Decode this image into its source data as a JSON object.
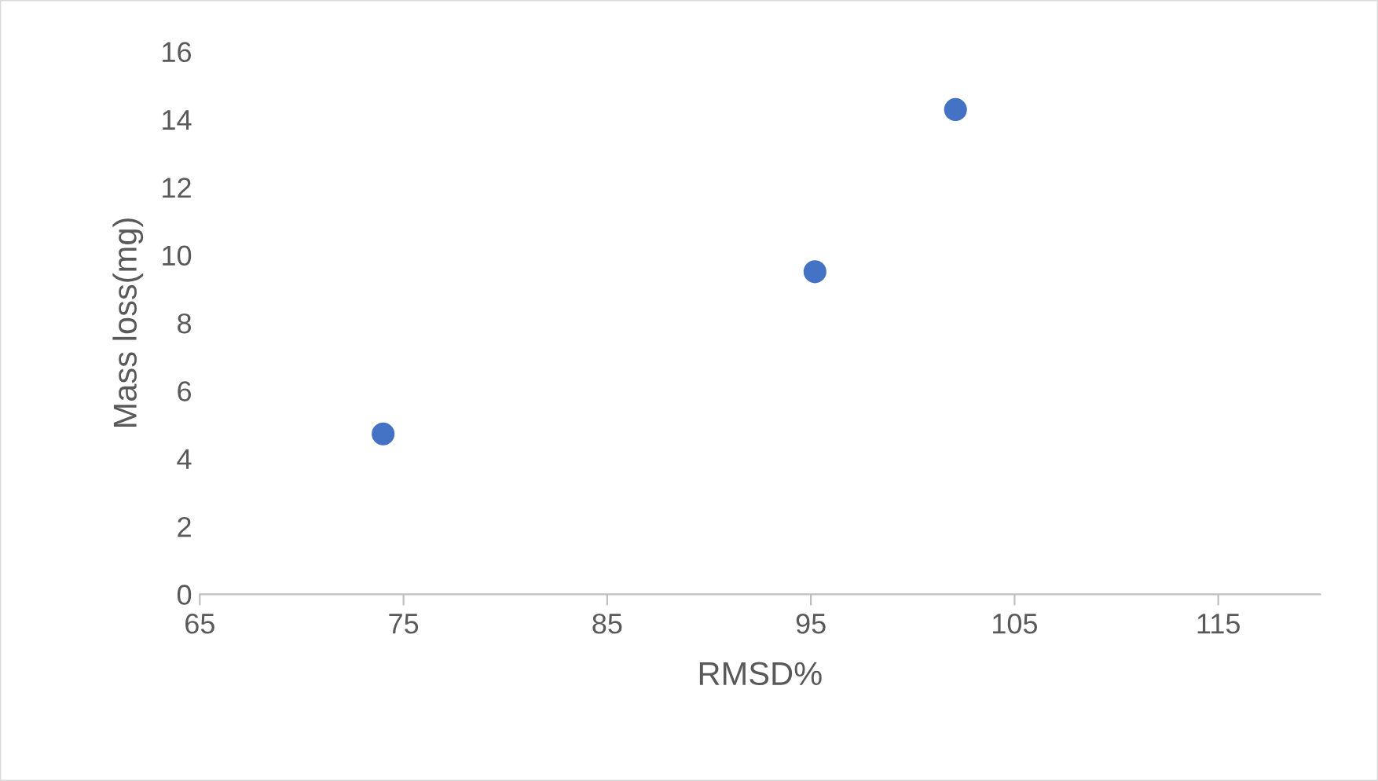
{
  "chart_data": {
    "type": "scatter",
    "xlabel": "RMSD%",
    "ylabel": "Mass loss(mg)",
    "x": [
      74.0,
      95.2,
      102.1
    ],
    "series": [
      {
        "color": "#4472c4",
        "values": [
          4.73,
          9.51,
          14.29
        ]
      }
    ],
    "xlim": [
      65,
      120
    ],
    "xticks": [
      65,
      75,
      85,
      95,
      105,
      115
    ],
    "ylim": [
      0,
      16
    ],
    "yticks": [
      0,
      2,
      4,
      6,
      8,
      10,
      12,
      14,
      16
    ],
    "grid": false,
    "legend": false,
    "marker": "circle"
  }
}
